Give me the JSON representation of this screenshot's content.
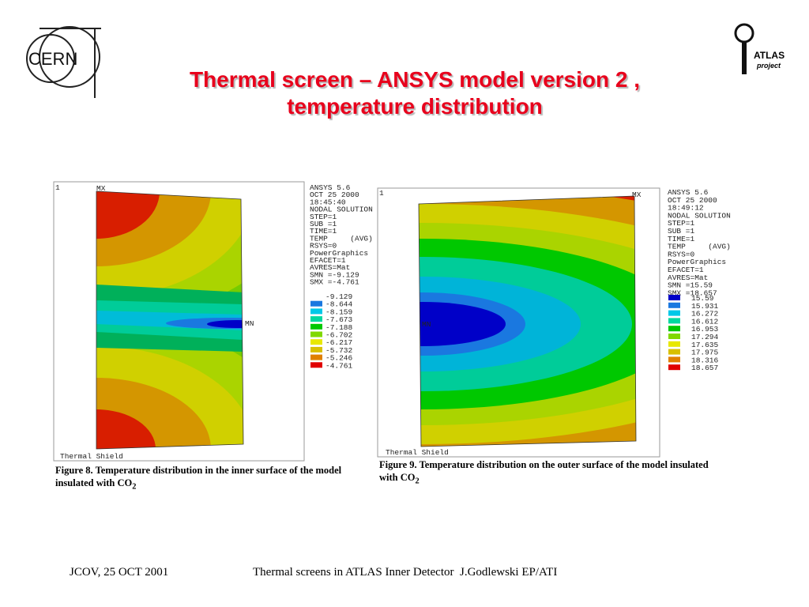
{
  "header": {
    "title": [
      "Thermal screen – ANSYS model version 2 ,",
      "temperature distribution"
    ],
    "cern_logo": "CERN",
    "atlas_logo": [
      "ATLAS",
      "project"
    ]
  },
  "figures": [
    {
      "panel_number": "1",
      "max_label": "MX",
      "min_label": "MN",
      "panel_footer": "Thermal Shield",
      "info": [
        "ANSYS 5.6",
        "OCT 25 2000",
        "18:45:40",
        "NODAL SOLUTION",
        "STEP=1",
        "SUB =1",
        "TIME=1",
        "TEMP     (AVG)",
        "RSYS=0",
        "PowerGraphics",
        "EFACET=1",
        "AVRES=Mat",
        "SMN =-9.129",
        "SMX =-4.761"
      ],
      "legend": [
        "-9.129",
        "-8.644",
        "-8.159",
        "-7.673",
        "-7.188",
        "-6.702",
        "-6.217",
        "-5.732",
        "-5.246",
        "-4.761"
      ],
      "caption": "Figure 8. Temperature distribution in the inner surface of the model insulated with CO",
      "caption_sub": "2"
    },
    {
      "panel_number": "1",
      "max_label": "MX",
      "min_label": "MN",
      "panel_footer": "Thermal Shield",
      "info": [
        "ANSYS 5.6",
        "OCT 25 2000",
        "18:49:12",
        "NODAL SOLUTION",
        "STEP=1",
        "SUB =1",
        "TIME=1",
        "TEMP     (AVG)",
        "RSYS=0",
        "PowerGraphics",
        "EFACET=1",
        "AVRES=Mat",
        "SMN =15.59",
        "SMX =18.657"
      ],
      "legend": [
        "15.59",
        "15.931",
        "16.272",
        "16.612",
        "16.953",
        "17.294",
        "17.635",
        "17.975",
        "18.316",
        "18.657"
      ],
      "caption": "Figure 9. Temperature distribution on the outer surface of the model insulated with CO",
      "caption_sub": "2"
    }
  ],
  "footer": {
    "left": "JCOV, 25 OCT 2001",
    "center": "Thermal screens in ATLAS Inner Detector  J.Godlewski EP/ATI"
  }
}
